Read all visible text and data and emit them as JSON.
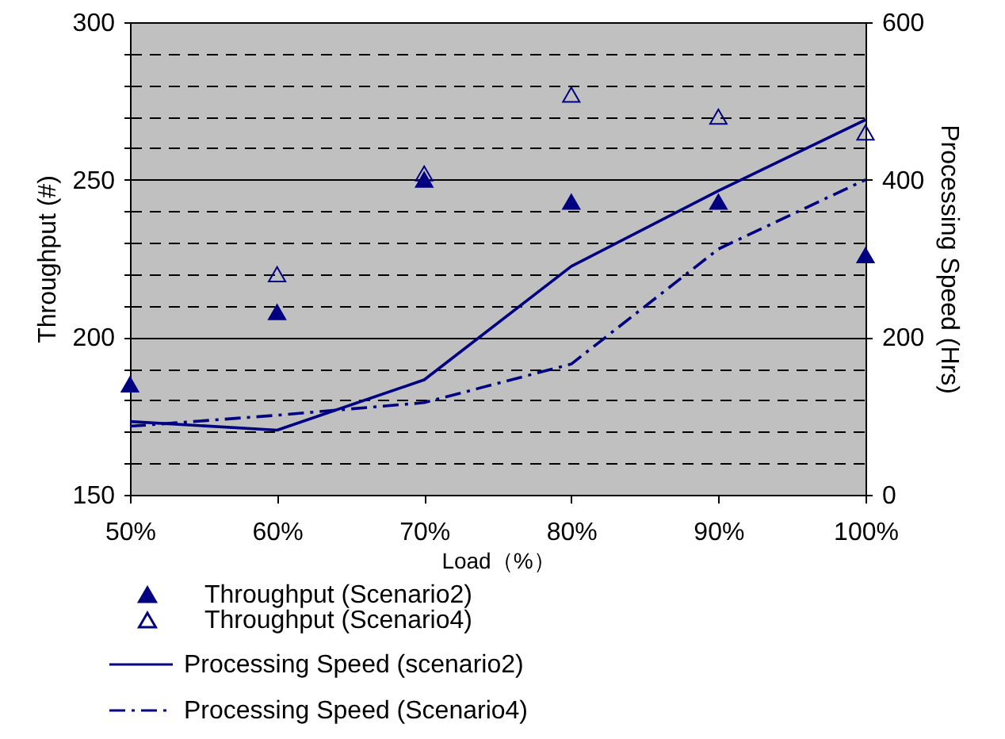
{
  "chart_data": {
    "type": "scatter",
    "xlabel": "Load（%）",
    "ylabel": "Throughput (#)",
    "y2label": "Processing Speed (Hrs)",
    "categories": [
      "50%",
      "60%",
      "70%",
      "80%",
      "90%",
      "100%"
    ],
    "ylim": [
      150,
      300
    ],
    "yticks": [
      150,
      200,
      250,
      300
    ],
    "y2lim": [
      0,
      600
    ],
    "y2ticks": [
      0,
      200,
      400,
      600
    ],
    "grid": "y",
    "legend": "bottom",
    "series": [
      {
        "name": "Throughput (Scenario2)",
        "marker": "triangle",
        "color": "#000080",
        "values": [
          185,
          208,
          250,
          243,
          243,
          226
        ]
      },
      {
        "name": "Throughput (Scenario4)",
        "marker": "triangle",
        "color": "#000080",
        "values": [
          null,
          220,
          252,
          277,
          270,
          265
        ]
      },
      {
        "name": "Processing Speed (scenario2)",
        "type": "line",
        "axis": "y2",
        "line_style": "solid",
        "color": "#000080",
        "values": [
          93,
          82,
          146,
          290,
          386,
          476
        ]
      },
      {
        "name": "Processing Speed (Scenario4)",
        "type": "line",
        "axis": "y2",
        "line_style": "dashed",
        "color": "#000080",
        "values": [
          87,
          101,
          117,
          166,
          312,
          400
        ]
      }
    ]
  }
}
